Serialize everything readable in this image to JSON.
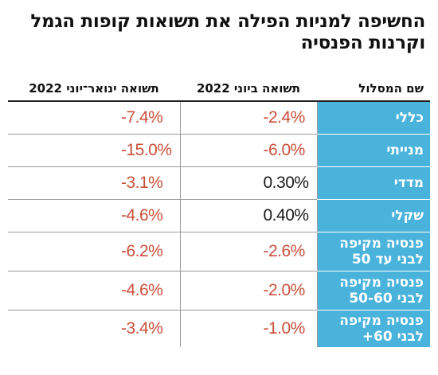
{
  "title_lines": [
    "החשיפה למניות הפילה את תשואות קופות הגמל",
    "וקרנות הפנסיה"
  ],
  "colors": {
    "path_cell_bg": "#4ab3dc",
    "negative": "#c9503a",
    "positive": "#1a1a1a"
  },
  "chart_data": {
    "type": "table",
    "title": "החשיפה למניות הפילה את תשואות קופות הגמל וקרנות הפנסיה",
    "columns": [
      "שם המסלול",
      "תשואה ביוני 2022",
      "תשואה ינואר־יוני 2022"
    ],
    "rows": [
      {
        "path": [
          "כללי"
        ],
        "june": "-2.4%",
        "ytd": "-7.4%",
        "june_value": -2.4,
        "ytd_value": -7.4
      },
      {
        "path": [
          "מנייתי"
        ],
        "june": "-6.0%",
        "ytd": "-15.0%",
        "june_value": -6.0,
        "ytd_value": -15.0
      },
      {
        "path": [
          "מדדי"
        ],
        "june": "0.30%",
        "ytd": "-3.1%",
        "june_value": 0.3,
        "ytd_value": -3.1
      },
      {
        "path": [
          "שקלי"
        ],
        "june": "0.40%",
        "ytd": "-4.6%",
        "june_value": 0.4,
        "ytd_value": -4.6
      },
      {
        "path": [
          "פנסיה מקיפה",
          "לבני עד 50"
        ],
        "june": "-2.6%",
        "ytd": "-6.2%",
        "june_value": -2.6,
        "ytd_value": -6.2
      },
      {
        "path": [
          "פנסיה מקיפה",
          "לבני 50-60"
        ],
        "june": "-2.0%",
        "ytd": "-4.6%",
        "june_value": -2.0,
        "ytd_value": -4.6
      },
      {
        "path": [
          "פנסיה מקיפה",
          "לבני 60+"
        ],
        "june": "-1.0%",
        "ytd": "-3.4%",
        "june_value": -1.0,
        "ytd_value": -3.4
      }
    ]
  }
}
